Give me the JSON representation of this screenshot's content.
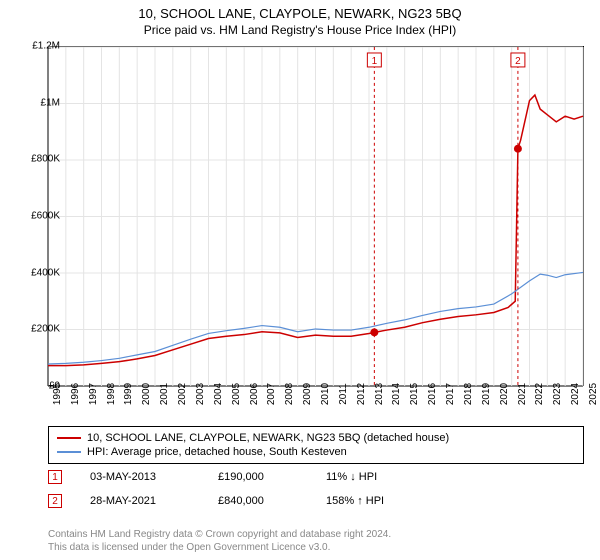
{
  "title": "10, SCHOOL LANE, CLAYPOLE, NEWARK, NG23 5BQ",
  "subtitle": "Price paid vs. HM Land Registry's House Price Index (HPI)",
  "chart": {
    "type": "line",
    "background_color": "#ffffff",
    "grid_color": "#e4e4e4",
    "axis_color": "#000000",
    "ylim": [
      0,
      1200000
    ],
    "ytick_step": 200000,
    "yticks": [
      "£0",
      "£200K",
      "£400K",
      "£600K",
      "£800K",
      "£1M",
      "£1.2M"
    ],
    "xlim": [
      1995,
      2025
    ],
    "xticks": [
      1995,
      1996,
      1997,
      1998,
      1999,
      2000,
      2001,
      2002,
      2003,
      2004,
      2005,
      2006,
      2007,
      2008,
      2009,
      2010,
      2011,
      2012,
      2013,
      2014,
      2015,
      2016,
      2017,
      2018,
      2019,
      2020,
      2021,
      2022,
      2023,
      2024,
      2025
    ],
    "series": [
      {
        "name": "price_paid",
        "label": "10, SCHOOL LANE, CLAYPOLE, NEWARK, NG23 5BQ (detached house)",
        "color": "#cc0000",
        "line_width": 1.5,
        "data": [
          [
            1995,
            72000
          ],
          [
            1996,
            72000
          ],
          [
            1997,
            75000
          ],
          [
            1998,
            80000
          ],
          [
            1999,
            86000
          ],
          [
            2000,
            96000
          ],
          [
            2001,
            108000
          ],
          [
            2002,
            128000
          ],
          [
            2003,
            148000
          ],
          [
            2004,
            168000
          ],
          [
            2005,
            176000
          ],
          [
            2006,
            182000
          ],
          [
            2007,
            192000
          ],
          [
            2008,
            188000
          ],
          [
            2009,
            172000
          ],
          [
            2010,
            180000
          ],
          [
            2011,
            176000
          ],
          [
            2012,
            176000
          ],
          [
            2013,
            186000
          ],
          [
            2013.3,
            190000
          ],
          [
            2014,
            198000
          ],
          [
            2015,
            208000
          ],
          [
            2016,
            224000
          ],
          [
            2017,
            236000
          ],
          [
            2018,
            246000
          ],
          [
            2019,
            252000
          ],
          [
            2020,
            260000
          ],
          [
            2020.8,
            278000
          ],
          [
            2021.2,
            300000
          ],
          [
            2021.35,
            840000
          ],
          [
            2021.5,
            870000
          ],
          [
            2022,
            1010000
          ],
          [
            2022.3,
            1030000
          ],
          [
            2022.6,
            980000
          ],
          [
            2023,
            960000
          ],
          [
            2023.5,
            935000
          ],
          [
            2024,
            955000
          ],
          [
            2024.5,
            945000
          ],
          [
            2025,
            955000
          ]
        ]
      },
      {
        "name": "hpi",
        "label": "HPI: Average price, detached house, South Kesteven",
        "color": "#5b8fd6",
        "line_width": 1.2,
        "data": [
          [
            1995,
            78000
          ],
          [
            1996,
            80000
          ],
          [
            1997,
            84000
          ],
          [
            1998,
            90000
          ],
          [
            1999,
            98000
          ],
          [
            2000,
            110000
          ],
          [
            2001,
            122000
          ],
          [
            2002,
            144000
          ],
          [
            2003,
            166000
          ],
          [
            2004,
            186000
          ],
          [
            2005,
            196000
          ],
          [
            2006,
            204000
          ],
          [
            2007,
            214000
          ],
          [
            2008,
            208000
          ],
          [
            2009,
            192000
          ],
          [
            2010,
            202000
          ],
          [
            2011,
            198000
          ],
          [
            2012,
            198000
          ],
          [
            2013,
            208000
          ],
          [
            2014,
            222000
          ],
          [
            2015,
            234000
          ],
          [
            2016,
            250000
          ],
          [
            2017,
            264000
          ],
          [
            2018,
            274000
          ],
          [
            2019,
            280000
          ],
          [
            2020,
            290000
          ],
          [
            2021,
            326000
          ],
          [
            2022,
            372000
          ],
          [
            2022.6,
            396000
          ],
          [
            2023,
            392000
          ],
          [
            2023.5,
            384000
          ],
          [
            2024,
            394000
          ],
          [
            2025,
            402000
          ]
        ]
      }
    ],
    "markers": [
      {
        "id": "1",
        "x": 2013.3,
        "y": 190000,
        "line_x": 2013.3,
        "dash": "3,3",
        "dash_color": "#cc0000"
      },
      {
        "id": "2",
        "x": 2021.35,
        "y": 840000,
        "line_x": 2021.35,
        "dash": "3,3",
        "dash_color": "#cc0000"
      }
    ]
  },
  "legend": {
    "items": [
      {
        "color": "#cc0000",
        "label": "10, SCHOOL LANE, CLAYPOLE, NEWARK, NG23 5BQ (detached house)"
      },
      {
        "color": "#5b8fd6",
        "label": "HPI: Average price, detached house, South Kesteven"
      }
    ]
  },
  "sales": [
    {
      "marker": "1",
      "date": "03-MAY-2013",
      "price": "£190,000",
      "delta": "11% ↓ HPI"
    },
    {
      "marker": "2",
      "date": "28-MAY-2021",
      "price": "£840,000",
      "delta": "158% ↑ HPI"
    }
  ],
  "attribution": {
    "line1": "Contains HM Land Registry data © Crown copyright and database right 2024.",
    "line2": "This data is licensed under the Open Government Licence v3.0."
  }
}
